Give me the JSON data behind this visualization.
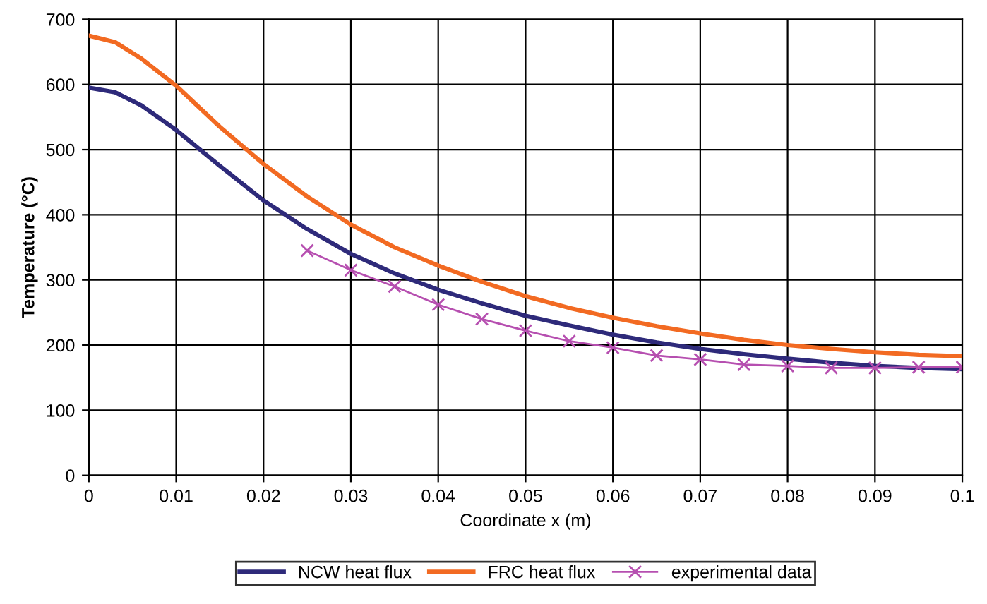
{
  "chart_data": {
    "type": "line",
    "xlabel": "Coordinate x (m)",
    "ylabel": "Temperature (°C)",
    "xlim": [
      0,
      0.1
    ],
    "xticks": [
      0,
      0.01,
      0.02,
      0.03,
      0.04,
      0.05,
      0.06,
      0.07,
      0.08,
      0.09,
      0.1
    ],
    "ylim": [
      0,
      700
    ],
    "yticks": [
      0,
      100,
      200,
      300,
      400,
      500,
      600,
      700
    ],
    "grid": true,
    "legend": "bottom",
    "series": [
      {
        "name": "NCW heat flux",
        "color": "#2e2a7a",
        "marker": "none",
        "x": [
          0,
          0.003,
          0.006,
          0.01,
          0.015,
          0.02,
          0.025,
          0.03,
          0.035,
          0.04,
          0.045,
          0.05,
          0.055,
          0.06,
          0.065,
          0.07,
          0.075,
          0.08,
          0.085,
          0.09,
          0.095,
          0.1
        ],
        "values": [
          595,
          588,
          568,
          530,
          475,
          422,
          378,
          340,
          310,
          285,
          264,
          245,
          230,
          216,
          204,
          194,
          186,
          179,
          173,
          168,
          165,
          163
        ]
      },
      {
        "name": "FRC heat flux",
        "color": "#f26a22",
        "marker": "none",
        "x": [
          0,
          0.003,
          0.006,
          0.01,
          0.015,
          0.02,
          0.025,
          0.03,
          0.035,
          0.04,
          0.045,
          0.05,
          0.055,
          0.06,
          0.065,
          0.07,
          0.075,
          0.08,
          0.085,
          0.09,
          0.095,
          0.1
        ],
        "values": [
          675,
          665,
          640,
          598,
          535,
          478,
          428,
          385,
          350,
          322,
          297,
          275,
          257,
          242,
          229,
          218,
          208,
          200,
          194,
          189,
          185,
          183
        ]
      },
      {
        "name": "experimental data",
        "color": "#b64fb0",
        "marker": "cross",
        "x": [
          0.025,
          0.03,
          0.035,
          0.04,
          0.045,
          0.05,
          0.055,
          0.06,
          0.065,
          0.07,
          0.075,
          0.08,
          0.085,
          0.09,
          0.095,
          0.1
        ],
        "values": [
          345,
          315,
          290,
          262,
          240,
          222,
          206,
          196,
          184,
          178,
          170,
          168,
          165,
          165,
          166,
          166
        ]
      }
    ]
  }
}
